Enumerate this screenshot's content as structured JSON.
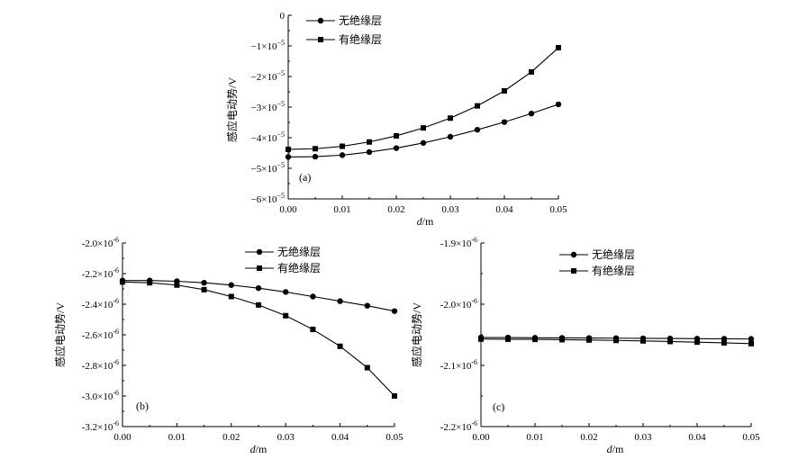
{
  "chart_data": [
    {
      "type": "line",
      "panel_label": "(a)",
      "xlabel": "d/m",
      "xlabel_var": "d",
      "xlabel_unit": "/m",
      "ylabel": "感应电动势/V",
      "xlim": [
        0,
        0.05
      ],
      "ylim": [
        -6e-05,
        0
      ],
      "x_ticks": [
        0,
        0.01,
        0.02,
        0.03,
        0.04,
        0.05
      ],
      "x_tick_labels": [
        "0.00",
        "0.01",
        "0.02",
        "0.03",
        "0.04",
        "0.05"
      ],
      "y_ticks": [
        0,
        -1e-05,
        -2e-05,
        -3e-05,
        -4e-05,
        -5e-05,
        -6e-05
      ],
      "y_tick_labels": [
        {
          "base": "0",
          "exp": ""
        },
        {
          "base": "−1×10",
          "exp": "−5"
        },
        {
          "base": "−2×10",
          "exp": "−5"
        },
        {
          "base": "−3×10",
          "exp": "−5"
        },
        {
          "base": "−4×10",
          "exp": "−5"
        },
        {
          "base": "−5×10",
          "exp": "−5"
        },
        {
          "base": "−6×10",
          "exp": "−5"
        }
      ],
      "x": [
        0,
        0.005,
        0.01,
        0.015,
        0.02,
        0.025,
        0.03,
        0.035,
        0.04,
        0.045,
        0.05
      ],
      "legend_position": "top-left",
      "series": [
        {
          "name": "无绝缘层",
          "marker": "circle",
          "values": [
            -4.63e-05,
            -4.62e-05,
            -4.57e-05,
            -4.47e-05,
            -4.34e-05,
            -4.17e-05,
            -3.97e-05,
            -3.74e-05,
            -3.49e-05,
            -3.21e-05,
            -2.91e-05
          ]
        },
        {
          "name": "有绝缘层",
          "marker": "square",
          "values": [
            -4.38e-05,
            -4.36e-05,
            -4.28e-05,
            -4.14e-05,
            -3.94e-05,
            -3.68e-05,
            -3.36e-05,
            -2.96e-05,
            -2.47e-05,
            -1.85e-05,
            -1.06e-05
          ]
        }
      ]
    },
    {
      "type": "line",
      "panel_label": "(b)",
      "xlabel": "d/m",
      "xlabel_var": "d",
      "xlabel_unit": "/m",
      "ylabel": "感应电动势/V",
      "xlim": [
        0,
        0.05
      ],
      "ylim": [
        -3.2e-06,
        -2e-06
      ],
      "x_ticks": [
        0,
        0.01,
        0.02,
        0.03,
        0.04,
        0.05
      ],
      "x_tick_labels": [
        "0.00",
        "0.01",
        "0.02",
        "0.03",
        "0.04",
        "0.05"
      ],
      "y_ticks": [
        -2e-06,
        -2.2e-06,
        -2.4e-06,
        -2.6e-06,
        -2.8e-06,
        -3e-06,
        -3.2e-06
      ],
      "y_tick_labels": [
        {
          "base": "-2.0×10",
          "exp": "-6"
        },
        {
          "base": "-2.2×10",
          "exp": "-6"
        },
        {
          "base": "-2.4×10",
          "exp": "-6"
        },
        {
          "base": "-2.6×10",
          "exp": "-6"
        },
        {
          "base": "-2.8×10",
          "exp": "-6"
        },
        {
          "base": "-3.0×10",
          "exp": "-6"
        },
        {
          "base": "-3.2×10",
          "exp": "-6"
        }
      ],
      "x": [
        0,
        0.005,
        0.01,
        0.015,
        0.02,
        0.025,
        0.03,
        0.035,
        0.04,
        0.045,
        0.05
      ],
      "legend_position": "top-right",
      "series": [
        {
          "name": "无绝缘层",
          "marker": "circle",
          "values": [
            -2.245e-06,
            -2.245e-06,
            -2.25e-06,
            -2.26e-06,
            -2.275e-06,
            -2.295e-06,
            -2.32e-06,
            -2.35e-06,
            -2.38e-06,
            -2.41e-06,
            -2.445e-06
          ]
        },
        {
          "name": "有绝缘层",
          "marker": "square",
          "values": [
            -2.255e-06,
            -2.26e-06,
            -2.275e-06,
            -2.305e-06,
            -2.35e-06,
            -2.405e-06,
            -2.475e-06,
            -2.565e-06,
            -2.675e-06,
            -2.815e-06,
            -3e-06
          ]
        }
      ]
    },
    {
      "type": "line",
      "panel_label": "(c)",
      "xlabel": "d/m",
      "xlabel_var": "d",
      "xlabel_unit": "/m",
      "ylabel": "感应电动势/V",
      "xlim": [
        0,
        0.05
      ],
      "ylim": [
        -2.2e-06,
        -1.9e-06
      ],
      "x_ticks": [
        0,
        0.01,
        0.02,
        0.03,
        0.04,
        0.05
      ],
      "x_tick_labels": [
        "0.00",
        "0.01",
        "0.02",
        "0.03",
        "0.04",
        "0.05"
      ],
      "y_ticks": [
        -1.9e-06,
        -2e-06,
        -2.1e-06,
        -2.2e-06
      ],
      "y_tick_labels": [
        {
          "base": "-1.9×10",
          "exp": "-6"
        },
        {
          "base": "-2.0×10",
          "exp": "-6"
        },
        {
          "base": "-2.1×10",
          "exp": "-6"
        },
        {
          "base": "-2.2×10",
          "exp": "-6"
        }
      ],
      "x": [
        0,
        0.005,
        0.01,
        0.015,
        0.02,
        0.025,
        0.03,
        0.035,
        0.04,
        0.045,
        0.05
      ],
      "legend_position": "top-right",
      "series": [
        {
          "name": "无绝缘层",
          "marker": "circle",
          "values": [
            -2.0545e-06,
            -2.0545e-06,
            -2.0548e-06,
            -2.055e-06,
            -2.0552e-06,
            -2.0555e-06,
            -2.0558e-06,
            -2.056e-06,
            -2.0563e-06,
            -2.0565e-06,
            -2.0568e-06
          ]
        },
        {
          "name": "有绝缘层",
          "marker": "square",
          "values": [
            -2.057e-06,
            -2.0572e-06,
            -2.0575e-06,
            -2.058e-06,
            -2.0585e-06,
            -2.0592e-06,
            -2.06e-06,
            -2.061e-06,
            -2.062e-06,
            -2.0632e-06,
            -2.0645e-06
          ]
        }
      ]
    }
  ]
}
